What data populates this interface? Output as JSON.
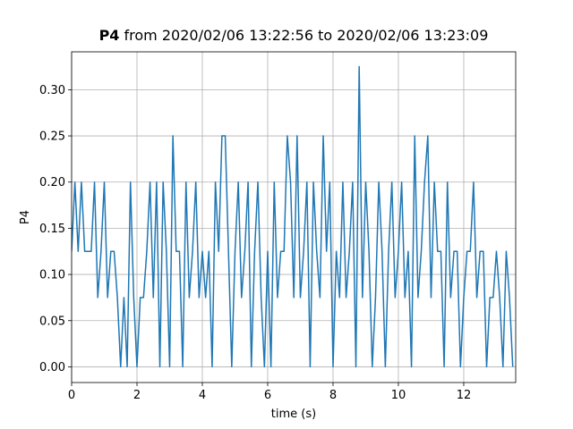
{
  "chart_data": {
    "type": "line",
    "title_parts": [
      "P4",
      "from 2020/02/06 13:22:56 to 2020/02/06 13:23:09"
    ],
    "xlabel": "time (s)",
    "ylabel": "P4",
    "x": [
      0,
      0.1,
      0.2,
      0.3,
      0.4,
      0.5,
      0.6,
      0.7,
      0.8,
      0.9,
      1,
      1.1,
      1.2,
      1.3,
      1.4,
      1.5,
      1.6,
      1.7,
      1.8,
      1.9,
      2,
      2.1,
      2.2,
      2.3,
      2.4,
      2.5,
      2.6,
      2.7,
      2.8,
      2.9,
      3,
      3.1,
      3.2,
      3.3,
      3.4,
      3.5,
      3.6,
      3.7,
      3.8,
      3.9,
      4,
      4.1,
      4.2,
      4.3,
      4.4,
      4.5,
      4.6,
      4.7,
      4.8,
      4.9,
      5,
      5.1,
      5.2,
      5.3,
      5.4,
      5.5,
      5.6,
      5.7,
      5.8,
      5.9,
      6,
      6.1,
      6.2,
      6.3,
      6.4,
      6.5,
      6.6,
      6.7,
      6.8,
      6.9,
      7,
      7.1,
      7.2,
      7.3,
      7.4,
      7.5,
      7.6,
      7.7,
      7.8,
      7.9,
      8,
      8.1,
      8.2,
      8.3,
      8.4,
      8.5,
      8.6,
      8.7,
      8.8,
      8.9,
      9,
      9.1,
      9.2,
      9.3,
      9.4,
      9.5,
      9.6,
      9.7,
      9.8,
      9.9,
      10,
      10.1,
      10.2,
      10.3,
      10.4,
      10.5,
      10.6,
      10.7,
      10.8,
      10.9,
      11,
      11.1,
      11.2,
      11.3,
      11.4,
      11.5,
      11.6,
      11.7,
      11.8,
      11.9,
      12,
      12.1,
      12.2,
      12.3,
      12.4,
      12.5,
      12.6,
      12.7,
      12.8,
      12.9,
      13,
      13.1,
      13.2,
      13.3,
      13.4,
      13.5
    ],
    "values": [
      0.125,
      0.2,
      0.125,
      0.2,
      0.125,
      0.125,
      0.125,
      0.2,
      0.075,
      0.125,
      0.2,
      0.075,
      0.125,
      0.125,
      0.075,
      0.0,
      0.075,
      0.0,
      0.2,
      0.075,
      0.0,
      0.075,
      0.075,
      0.125,
      0.2,
      0.075,
      0.2,
      0.0,
      0.2,
      0.125,
      0.0,
      0.25,
      0.125,
      0.125,
      0.0,
      0.2,
      0.075,
      0.125,
      0.2,
      0.075,
      0.125,
      0.075,
      0.125,
      0.0,
      0.2,
      0.125,
      0.25,
      0.25,
      0.125,
      0.0,
      0.125,
      0.2,
      0.075,
      0.125,
      0.2,
      0.0,
      0.125,
      0.2,
      0.075,
      0.0,
      0.125,
      0.0,
      0.2,
      0.075,
      0.125,
      0.125,
      0.25,
      0.2,
      0.075,
      0.25,
      0.075,
      0.125,
      0.2,
      0.0,
      0.2,
      0.125,
      0.075,
      0.25,
      0.125,
      0.2,
      0.0,
      0.125,
      0.075,
      0.2,
      0.075,
      0.125,
      0.2,
      0.0,
      0.325,
      0.075,
      0.2,
      0.125,
      0.0,
      0.075,
      0.2,
      0.125,
      0.0,
      0.125,
      0.2,
      0.075,
      0.125,
      0.2,
      0.075,
      0.125,
      0.0,
      0.25,
      0.075,
      0.125,
      0.2,
      0.25,
      0.075,
      0.2,
      0.125,
      0.125,
      0.0,
      0.2,
      0.075,
      0.125,
      0.125,
      0.0,
      0.075,
      0.125,
      0.125,
      0.2,
      0.075,
      0.125,
      0.125,
      0.0,
      0.075,
      0.075,
      0.125,
      0.075,
      0.0,
      0.125,
      0.075,
      0.0
    ],
    "color": "#1f77b4",
    "xlim": [
      0,
      13.59
    ],
    "ylim": [
      -0.017,
      0.341
    ],
    "xticks": [
      0,
      2,
      4,
      6,
      8,
      10,
      12
    ],
    "yticks": [
      {
        "value": 0,
        "label": "0.00"
      },
      {
        "value": 0.05,
        "label": "0.05"
      },
      {
        "value": 0.1,
        "label": "0.10"
      },
      {
        "value": 0.15,
        "label": "0.15"
      },
      {
        "value": 0.2,
        "label": "0.20"
      },
      {
        "value": 0.25,
        "label": "0.25"
      },
      {
        "value": 0.3,
        "label": "0.30"
      }
    ],
    "grid": true
  }
}
